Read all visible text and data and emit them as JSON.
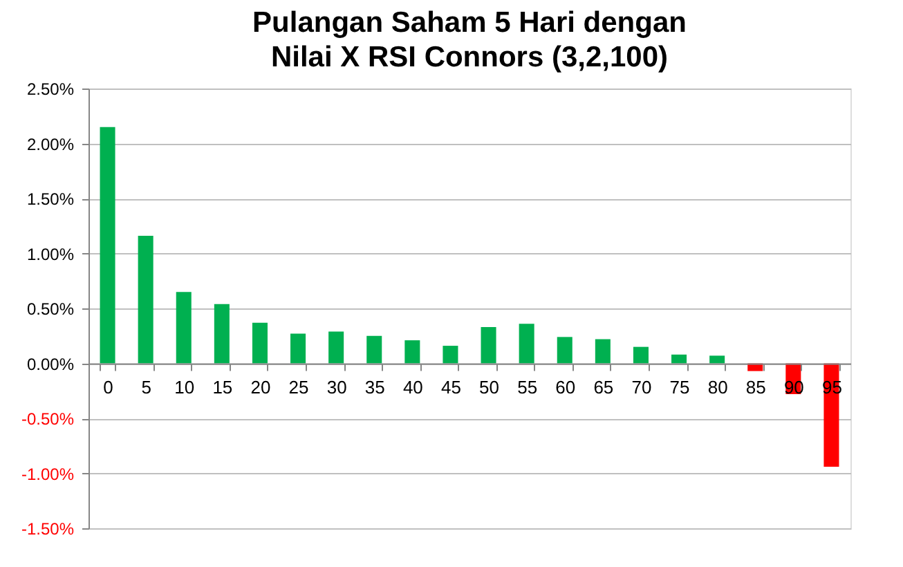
{
  "chart_data": {
    "type": "bar",
    "title": "Pulangan Saham 5 Hari dengan\nNilai X RSI Connors (3,2,100)",
    "categories": [
      "0",
      "5",
      "10",
      "15",
      "20",
      "25",
      "30",
      "35",
      "40",
      "45",
      "50",
      "55",
      "60",
      "65",
      "70",
      "75",
      "80",
      "85",
      "90",
      "95"
    ],
    "values": [
      2.15,
      1.16,
      0.65,
      0.54,
      0.37,
      0.27,
      0.29,
      0.25,
      0.21,
      0.16,
      0.33,
      0.36,
      0.24,
      0.22,
      0.15,
      0.08,
      0.07,
      -0.07,
      -0.28,
      -0.94
    ],
    "colors": [
      "#00b050",
      "#00b050",
      "#00b050",
      "#00b050",
      "#00b050",
      "#00b050",
      "#00b050",
      "#00b050",
      "#00b050",
      "#00b050",
      "#00b050",
      "#00b050",
      "#00b050",
      "#00b050",
      "#00b050",
      "#00b050",
      "#00b050",
      "#ff0000",
      "#ff0000",
      "#ff0000"
    ],
    "ylim": [
      -1.5,
      2.5
    ],
    "yticks": [
      {
        "value": 2.5,
        "label": "2.50%"
      },
      {
        "value": 2.0,
        "label": "2.00%"
      },
      {
        "value": 1.5,
        "label": "1.50%"
      },
      {
        "value": 1.0,
        "label": "1.00%"
      },
      {
        "value": 0.5,
        "label": "0.50%"
      },
      {
        "value": 0,
        "label": "0.00%"
      },
      {
        "value": -0.5,
        "label": "-0.50%"
      },
      {
        "value": -1.0,
        "label": "-1.00%"
      },
      {
        "value": -1.5,
        "label": "-1.50%"
      }
    ],
    "grid": "y"
  }
}
